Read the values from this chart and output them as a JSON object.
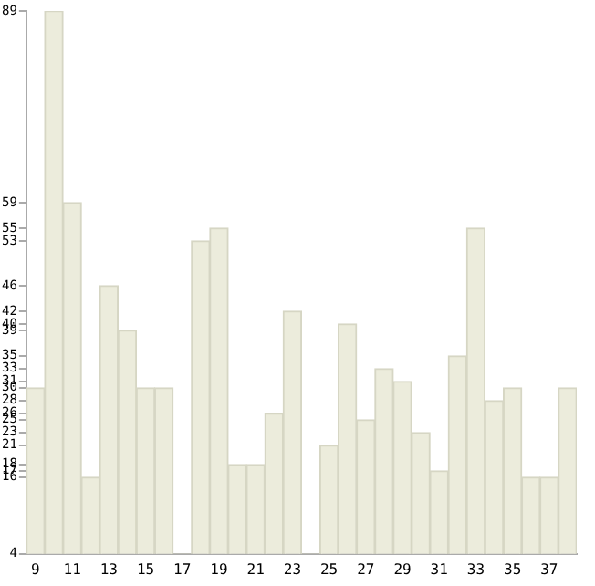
{
  "chart_data": {
    "type": "bar",
    "categories": [
      "9",
      null,
      "11",
      null,
      "13",
      null,
      "15",
      null,
      "17",
      null,
      "19",
      null,
      "21",
      null,
      "23",
      null,
      "25",
      null,
      "27",
      null,
      "29",
      null,
      "31",
      null,
      "33",
      null,
      "35",
      null,
      "37",
      null
    ],
    "values": [
      30,
      89,
      59,
      16,
      46,
      39,
      30,
      30,
      4,
      53,
      55,
      18,
      18,
      26,
      42,
      4,
      21,
      40,
      25,
      33,
      31,
      23,
      17,
      35,
      55,
      28,
      30,
      16,
      16,
      30
    ],
    "color": "#ececdc",
    "ylim": [
      4,
      89
    ],
    "yticks": [
      4,
      16,
      17,
      18,
      21,
      23,
      25,
      26,
      28,
      30,
      31,
      33,
      35,
      39,
      40,
      42,
      46,
      53,
      55,
      59,
      89
    ],
    "grid": false,
    "legend": false
  }
}
